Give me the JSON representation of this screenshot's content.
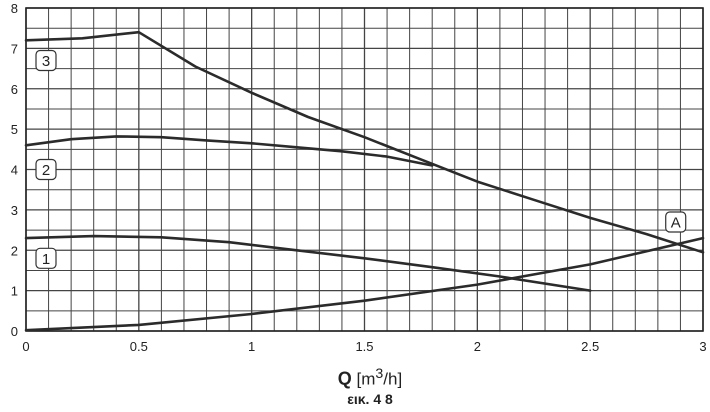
{
  "chart_data": {
    "type": "line",
    "xlim": [
      0,
      3
    ],
    "ylim": [
      0,
      8
    ],
    "x_ticks": [
      "0",
      "0.5",
      "1",
      "1.5",
      "2",
      "2.5",
      "3"
    ],
    "y_ticks": [
      "0",
      "1",
      "2",
      "3",
      "4",
      "5",
      "6",
      "7",
      "8"
    ],
    "grid": true,
    "xlabel_symbol": "Q",
    "xlabel_unit_open": "[m",
    "xlabel_unit_exp": "3",
    "xlabel_unit_close": "/h]",
    "caption": "εικ. 4 8",
    "series": [
      {
        "name": "3",
        "x": [
          0,
          0.25,
          0.5,
          0.75,
          1.0,
          1.25,
          1.5,
          1.75,
          2.0,
          2.25,
          2.5,
          2.75,
          3.0
        ],
        "y": [
          7.2,
          7.25,
          7.4,
          6.55,
          5.9,
          5.3,
          4.8,
          4.25,
          3.7,
          3.25,
          2.8,
          2.4,
          1.95
        ]
      },
      {
        "name": "2",
        "x": [
          0,
          0.2,
          0.4,
          0.6,
          0.8,
          1.0,
          1.2,
          1.4,
          1.6,
          1.8
        ],
        "y": [
          4.6,
          4.75,
          4.82,
          4.8,
          4.72,
          4.65,
          4.55,
          4.45,
          4.32,
          4.1
        ]
      },
      {
        "name": "1",
        "x": [
          0,
          0.3,
          0.6,
          0.9,
          1.2,
          1.5,
          1.8,
          2.1,
          2.5
        ],
        "y": [
          2.3,
          2.35,
          2.32,
          2.2,
          2.0,
          1.8,
          1.58,
          1.35,
          1.0
        ]
      },
      {
        "name": "A",
        "x": [
          0,
          0.5,
          1.0,
          1.5,
          2.0,
          2.5,
          3.0
        ],
        "y": [
          0.02,
          0.15,
          0.42,
          0.75,
          1.15,
          1.65,
          2.3
        ]
      }
    ]
  }
}
